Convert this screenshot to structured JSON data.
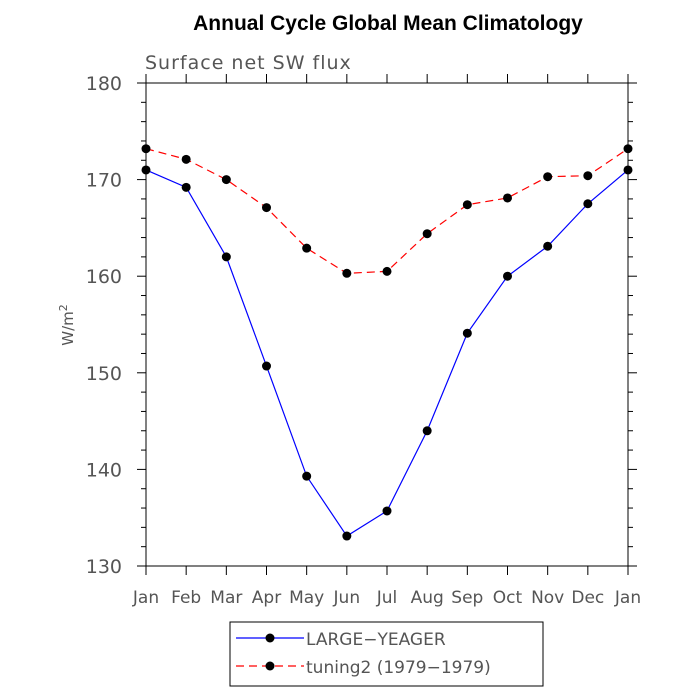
{
  "chart_data": {
    "type": "line",
    "title": "Annual Cycle Global Mean Climatology",
    "subtitle": "Surface net SW flux",
    "ylabel": "W/m",
    "ylabel_superscript": "2",
    "xlabel": "",
    "categories": [
      "Jan",
      "Feb",
      "Mar",
      "Apr",
      "May",
      "Jun",
      "Jul",
      "Aug",
      "Sep",
      "Oct",
      "Nov",
      "Dec",
      "Jan"
    ],
    "ylim": [
      130,
      180
    ],
    "yticks": [
      130,
      140,
      150,
      160,
      170,
      180
    ],
    "grid": false,
    "legend_position": "bottom",
    "series": [
      {
        "name": "LARGE−YEAGER",
        "color": "#0000ff",
        "line_style": "solid",
        "marker": "filled-circle",
        "values": [
          171.0,
          169.2,
          162.0,
          150.7,
          139.3,
          133.1,
          135.7,
          144.0,
          154.1,
          160.0,
          163.1,
          167.5,
          171.0
        ]
      },
      {
        "name": "tuning2 (1979−1979)",
        "color": "#ff0000",
        "line_style": "dashed",
        "marker": "filled-circle",
        "values": [
          173.2,
          172.1,
          170.0,
          167.1,
          162.9,
          160.3,
          160.5,
          164.4,
          167.4,
          168.1,
          170.3,
          170.4,
          173.2
        ]
      }
    ]
  }
}
